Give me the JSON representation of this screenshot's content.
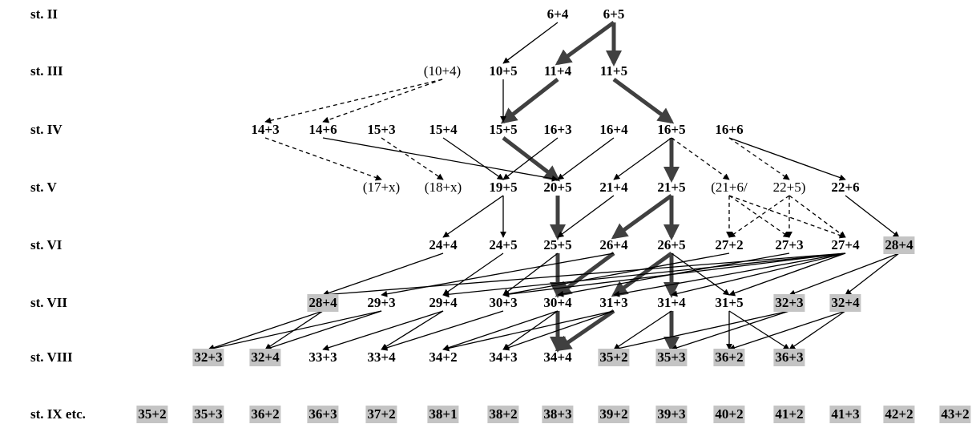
{
  "stages": [
    {
      "id": "II",
      "label": "st. II"
    },
    {
      "id": "III",
      "label": "st. III"
    },
    {
      "id": "IV",
      "label": "st. IV"
    },
    {
      "id": "V",
      "label": "st. V"
    },
    {
      "id": "VI",
      "label": "st. VI"
    },
    {
      "id": "VII",
      "label": "st. VII"
    },
    {
      "id": "VIII",
      "label": "st. VIII"
    },
    {
      "id": "IX",
      "label": "st. IX etc."
    }
  ],
  "nodes": [
    {
      "id": "II-6+4",
      "stage": "II",
      "label": "6+4"
    },
    {
      "id": "II-6+5",
      "stage": "II",
      "label": "6+5"
    },
    {
      "id": "III-10+4",
      "stage": "III",
      "label": "(10+4)",
      "style": "light"
    },
    {
      "id": "III-10+5",
      "stage": "III",
      "label": "10+5"
    },
    {
      "id": "III-11+4",
      "stage": "III",
      "label": "11+4"
    },
    {
      "id": "III-11+5",
      "stage": "III",
      "label": "11+5"
    },
    {
      "id": "IV-14+3",
      "stage": "IV",
      "label": "14+3"
    },
    {
      "id": "IV-14+6",
      "stage": "IV",
      "label": "14+6"
    },
    {
      "id": "IV-15+3",
      "stage": "IV",
      "label": "15+3"
    },
    {
      "id": "IV-15+4",
      "stage": "IV",
      "label": "15+4"
    },
    {
      "id": "IV-15+5",
      "stage": "IV",
      "label": "15+5"
    },
    {
      "id": "IV-16+3",
      "stage": "IV",
      "label": "16+3"
    },
    {
      "id": "IV-16+4",
      "stage": "IV",
      "label": "16+4"
    },
    {
      "id": "IV-16+5",
      "stage": "IV",
      "label": "16+5"
    },
    {
      "id": "IV-16+6",
      "stage": "IV",
      "label": "16+6"
    },
    {
      "id": "V-17+x",
      "stage": "V",
      "label": "(17+x)",
      "style": "light"
    },
    {
      "id": "V-18+x",
      "stage": "V",
      "label": "(18+x)",
      "style": "light"
    },
    {
      "id": "V-19+5",
      "stage": "V",
      "label": "19+5"
    },
    {
      "id": "V-20+5",
      "stage": "V",
      "label": "20+5"
    },
    {
      "id": "V-21+4",
      "stage": "V",
      "label": "21+4"
    },
    {
      "id": "V-21+5",
      "stage": "V",
      "label": "21+5"
    },
    {
      "id": "V-21+6",
      "stage": "V",
      "label": "(21+6/",
      "style": "light"
    },
    {
      "id": "V-22+5",
      "stage": "V",
      "label": "22+5)",
      "style": "light"
    },
    {
      "id": "V-22+6",
      "stage": "V",
      "label": "22+6"
    },
    {
      "id": "VI-24+4",
      "stage": "VI",
      "label": "24+4"
    },
    {
      "id": "VI-24+5",
      "stage": "VI",
      "label": "24+5"
    },
    {
      "id": "VI-25+5",
      "stage": "VI",
      "label": "25+5"
    },
    {
      "id": "VI-26+4",
      "stage": "VI",
      "label": "26+4"
    },
    {
      "id": "VI-26+5",
      "stage": "VI",
      "label": "26+5"
    },
    {
      "id": "VI-27+2",
      "stage": "VI",
      "label": "27+2"
    },
    {
      "id": "VI-27+3",
      "stage": "VI",
      "label": "27+3"
    },
    {
      "id": "VI-27+4",
      "stage": "VI",
      "label": "27+4"
    },
    {
      "id": "VI-28+4",
      "stage": "VI",
      "label": "28+4",
      "style": "hl"
    },
    {
      "id": "VII-28+4",
      "stage": "VII",
      "label": "28+4",
      "style": "hl"
    },
    {
      "id": "VII-29+3",
      "stage": "VII",
      "label": "29+3"
    },
    {
      "id": "VII-29+4",
      "stage": "VII",
      "label": "29+4"
    },
    {
      "id": "VII-30+3",
      "stage": "VII",
      "label": "30+3"
    },
    {
      "id": "VII-30+4",
      "stage": "VII",
      "label": "30+4"
    },
    {
      "id": "VII-31+3",
      "stage": "VII",
      "label": "31+3"
    },
    {
      "id": "VII-31+4",
      "stage": "VII",
      "label": "31+4"
    },
    {
      "id": "VII-31+5",
      "stage": "VII",
      "label": "31+5"
    },
    {
      "id": "VII-32+3",
      "stage": "VII",
      "label": "32+3",
      "style": "hl"
    },
    {
      "id": "VII-32+4",
      "stage": "VII",
      "label": "32+4",
      "style": "hl"
    },
    {
      "id": "VIII-32+3",
      "stage": "VIII",
      "label": "32+3",
      "style": "hl"
    },
    {
      "id": "VIII-32+4",
      "stage": "VIII",
      "label": "32+4",
      "style": "hl"
    },
    {
      "id": "VIII-33+3",
      "stage": "VIII",
      "label": "33+3"
    },
    {
      "id": "VIII-33+4",
      "stage": "VIII",
      "label": "33+4"
    },
    {
      "id": "VIII-34+2",
      "stage": "VIII",
      "label": "34+2"
    },
    {
      "id": "VIII-34+3",
      "stage": "VIII",
      "label": "34+3"
    },
    {
      "id": "VIII-34+4",
      "stage": "VIII",
      "label": "34+4"
    },
    {
      "id": "VIII-35+2",
      "stage": "VIII",
      "label": "35+2",
      "style": "hl"
    },
    {
      "id": "VIII-35+3",
      "stage": "VIII",
      "label": "35+3",
      "style": "hl"
    },
    {
      "id": "VIII-36+2",
      "stage": "VIII",
      "label": "36+2",
      "style": "hl"
    },
    {
      "id": "VIII-36+3",
      "stage": "VIII",
      "label": "36+3",
      "style": "hl"
    },
    {
      "id": "IX-35+2",
      "stage": "IX",
      "label": "35+2",
      "style": "hl"
    },
    {
      "id": "IX-35+3",
      "stage": "IX",
      "label": "35+3",
      "style": "hl"
    },
    {
      "id": "IX-36+2",
      "stage": "IX",
      "label": "36+2",
      "style": "hl"
    },
    {
      "id": "IX-36+3",
      "stage": "IX",
      "label": "36+3",
      "style": "hl"
    },
    {
      "id": "IX-37+2",
      "stage": "IX",
      "label": "37+2",
      "style": "hl"
    },
    {
      "id": "IX-38+1",
      "stage": "IX",
      "label": "38+1",
      "style": "hl"
    },
    {
      "id": "IX-38+2",
      "stage": "IX",
      "label": "38+2",
      "style": "hl"
    },
    {
      "id": "IX-38+3",
      "stage": "IX",
      "label": "38+3",
      "style": "hl"
    },
    {
      "id": "IX-39+2",
      "stage": "IX",
      "label": "39+2",
      "style": "hl"
    },
    {
      "id": "IX-39+3",
      "stage": "IX",
      "label": "39+3",
      "style": "hl"
    },
    {
      "id": "IX-40+2",
      "stage": "IX",
      "label": "40+2",
      "style": "hl"
    },
    {
      "id": "IX-41+2",
      "stage": "IX",
      "label": "41+2",
      "style": "hl"
    },
    {
      "id": "IX-41+3",
      "stage": "IX",
      "label": "41+3",
      "style": "hl"
    },
    {
      "id": "IX-42+2",
      "stage": "IX",
      "label": "42+2",
      "style": "hl"
    },
    {
      "id": "IX-43+2",
      "stage": "IX",
      "label": "43+2",
      "style": "hl"
    }
  ],
  "edges": [
    {
      "from": "II-6+5",
      "to": "III-11+4",
      "type": "thick"
    },
    {
      "from": "II-6+5",
      "to": "III-11+5",
      "type": "thick"
    },
    {
      "from": "III-11+4",
      "to": "IV-15+5",
      "type": "thick"
    },
    {
      "from": "III-11+5",
      "to": "IV-16+5",
      "type": "thick"
    },
    {
      "from": "IV-15+5",
      "to": "V-20+5",
      "type": "thick"
    },
    {
      "from": "IV-16+5",
      "to": "V-21+5",
      "type": "thick"
    },
    {
      "from": "V-20+5",
      "to": "VI-25+5",
      "type": "thick"
    },
    {
      "from": "V-21+5",
      "to": "VI-26+4",
      "type": "thick"
    },
    {
      "from": "V-21+5",
      "to": "VI-26+5",
      "type": "thick"
    },
    {
      "from": "VI-25+5",
      "to": "VII-30+4",
      "type": "thick"
    },
    {
      "from": "VI-26+4",
      "to": "VII-30+4",
      "type": "thick"
    },
    {
      "from": "VI-26+5",
      "to": "VII-31+3",
      "type": "thick"
    },
    {
      "from": "VI-26+5",
      "to": "VII-31+4",
      "type": "thick"
    },
    {
      "from": "VII-30+4",
      "to": "VIII-34+4",
      "type": "thick"
    },
    {
      "from": "VII-31+3",
      "to": "VIII-34+4",
      "type": "thick"
    },
    {
      "from": "VII-31+4",
      "to": "VIII-35+3",
      "type": "thick"
    },
    {
      "from": "II-6+4",
      "to": "III-10+5",
      "type": "solid"
    },
    {
      "from": "III-10+5",
      "to": "IV-15+5",
      "type": "solid"
    },
    {
      "from": "IV-14+6",
      "to": "V-20+5",
      "type": "solid"
    },
    {
      "from": "IV-15+4",
      "to": "V-19+5",
      "type": "solid"
    },
    {
      "from": "IV-16+3",
      "to": "V-19+5",
      "type": "solid"
    },
    {
      "from": "IV-16+4",
      "to": "V-20+5",
      "type": "solid"
    },
    {
      "from": "IV-16+5",
      "to": "V-21+4",
      "type": "solid"
    },
    {
      "from": "IV-16+6",
      "to": "V-22+6",
      "type": "solid"
    },
    {
      "from": "V-19+5",
      "to": "VI-24+4",
      "type": "solid"
    },
    {
      "from": "V-19+5",
      "to": "VI-24+5",
      "type": "solid"
    },
    {
      "from": "V-21+4",
      "to": "VI-25+5",
      "type": "solid"
    },
    {
      "from": "V-22+6",
      "to": "VI-28+4",
      "type": "solid"
    },
    {
      "from": "VI-24+4",
      "to": "VII-28+4",
      "type": "solid"
    },
    {
      "from": "VI-24+5",
      "to": "VII-29+4",
      "type": "solid"
    },
    {
      "from": "VI-25+5",
      "to": "VII-30+3",
      "type": "solid"
    },
    {
      "from": "VI-26+4",
      "to": "VII-29+3",
      "type": "solid"
    },
    {
      "from": "VI-26+5",
      "to": "VII-31+5",
      "type": "solid"
    },
    {
      "from": "VI-27+2",
      "to": "VII-30+3",
      "type": "solid"
    },
    {
      "from": "VI-27+3",
      "to": "VII-30+4",
      "type": "solid"
    },
    {
      "from": "VI-27+4",
      "to": "VII-28+4",
      "type": "solid"
    },
    {
      "from": "VI-27+4",
      "to": "VII-29+4",
      "type": "solid"
    },
    {
      "from": "VI-27+4",
      "to": "VII-30+3",
      "type": "solid"
    },
    {
      "from": "VI-27+4",
      "to": "VII-31+3",
      "type": "solid"
    },
    {
      "from": "VI-27+4",
      "to": "VII-31+4",
      "type": "solid"
    },
    {
      "from": "VI-27+4",
      "to": "VII-31+5",
      "type": "solid"
    },
    {
      "from": "VI-28+4",
      "to": "VII-32+3",
      "type": "solid"
    },
    {
      "from": "VI-28+4",
      "to": "VII-32+4",
      "type": "solid"
    },
    {
      "from": "VII-28+4",
      "to": "VIII-32+3",
      "type": "solid"
    },
    {
      "from": "VII-28+4",
      "to": "VIII-32+4",
      "type": "solid"
    },
    {
      "from": "VII-29+3",
      "to": "VIII-32+3",
      "type": "solid"
    },
    {
      "from": "VII-29+3",
      "to": "VIII-32+4",
      "type": "solid"
    },
    {
      "from": "VII-29+4",
      "to": "VIII-33+3",
      "type": "solid"
    },
    {
      "from": "VII-29+4",
      "to": "VIII-33+4",
      "type": "solid"
    },
    {
      "from": "VII-30+3",
      "to": "VIII-33+4",
      "type": "solid"
    },
    {
      "from": "VII-30+4",
      "to": "VIII-34+2",
      "type": "solid"
    },
    {
      "from": "VII-30+4",
      "to": "VIII-34+3",
      "type": "solid"
    },
    {
      "from": "VII-31+3",
      "to": "VIII-34+2",
      "type": "solid"
    },
    {
      "from": "VII-31+3",
      "to": "VIII-34+3",
      "type": "solid"
    },
    {
      "from": "VII-31+4",
      "to": "VIII-35+2",
      "type": "solid"
    },
    {
      "from": "VII-31+5",
      "to": "VIII-36+2",
      "type": "solid"
    },
    {
      "from": "VII-31+5",
      "to": "VIII-36+3",
      "type": "solid"
    },
    {
      "from": "VII-32+3",
      "to": "VIII-35+2",
      "type": "solid"
    },
    {
      "from": "VII-32+3",
      "to": "VIII-35+3",
      "type": "solid"
    },
    {
      "from": "VII-32+4",
      "to": "VIII-36+2",
      "type": "solid"
    },
    {
      "from": "VII-32+4",
      "to": "VIII-36+3",
      "type": "solid"
    },
    {
      "from": "III-10+4",
      "to": "IV-14+3",
      "type": "dashed"
    },
    {
      "from": "III-10+4",
      "to": "IV-14+6",
      "type": "dashed"
    },
    {
      "from": "IV-14+3",
      "to": "V-17+x",
      "type": "dashed"
    },
    {
      "from": "IV-15+3",
      "to": "V-18+x",
      "type": "dashed"
    },
    {
      "from": "IV-16+5",
      "to": "V-21+6",
      "type": "dashed"
    },
    {
      "from": "IV-16+6",
      "to": "V-22+5",
      "type": "dashed"
    },
    {
      "from": "V-21+6",
      "to": "VI-27+2",
      "type": "dashed"
    },
    {
      "from": "V-21+6",
      "to": "VI-27+3",
      "type": "dashed"
    },
    {
      "from": "V-21+6",
      "to": "VI-27+4",
      "type": "dashed"
    },
    {
      "from": "V-22+5",
      "to": "VI-27+2",
      "type": "dashed"
    },
    {
      "from": "V-22+5",
      "to": "VI-27+3",
      "type": "dashed"
    },
    {
      "from": "V-22+5",
      "to": "VI-27+4",
      "type": "dashed"
    }
  ]
}
